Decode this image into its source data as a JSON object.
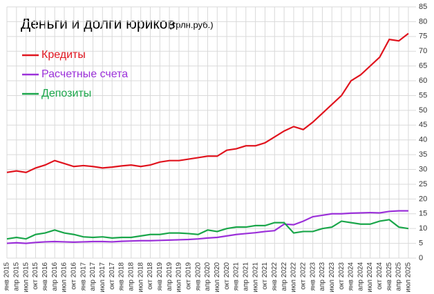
{
  "chart_data": {
    "type": "line",
    "title": "Деньги и долги юриков",
    "subtitle": "(трлн.руб.)",
    "categories": [
      "янв 2015",
      "апр 2015",
      "июл 2015",
      "окт 2015",
      "янв 2016",
      "апр 2016",
      "июл 2016",
      "окт 2016",
      "янв 2017",
      "апр 2017",
      "июл 2017",
      "окт 2017",
      "янв 2018",
      "апр 2018",
      "июл 2018",
      "окт 2018",
      "янв 2019",
      "апр 2019",
      "июл 2019",
      "окт 2019",
      "янв 2020",
      "апр 2020",
      "июл 2020",
      "окт 2020",
      "янв 2021",
      "апр 2021",
      "июл 2021",
      "окт 2021",
      "янв 2022",
      "апр 2022",
      "июл 2022",
      "окт 2022",
      "янв 2023",
      "апр 2023",
      "июл 2023",
      "окт 2023",
      "янв 2024",
      "апр 2024",
      "июл 2024",
      "окт 2024",
      "янв 2025",
      "апр 2025",
      "июл 2025"
    ],
    "series": [
      {
        "name": "Кредиты",
        "color": "#e0141e",
        "values": [
          29,
          29.5,
          29,
          30.5,
          31.5,
          33,
          32,
          31,
          31.3,
          31,
          30.5,
          30.8,
          31.2,
          31.5,
          31,
          31.5,
          32.5,
          33,
          33,
          33.5,
          34,
          34.5,
          34.5,
          36.5,
          37,
          38,
          38,
          39,
          41,
          43,
          44.5,
          43.5,
          46,
          49,
          52,
          55,
          60,
          62,
          65,
          68,
          74,
          73.5,
          76
        ]
      },
      {
        "name": "Расчетные счета",
        "color": "#9b30d9",
        "values": [
          5,
          5.2,
          5,
          5.3,
          5.5,
          5.6,
          5.5,
          5.4,
          5.5,
          5.6,
          5.6,
          5.5,
          5.7,
          5.8,
          5.9,
          5.9,
          6,
          6.1,
          6.2,
          6.3,
          6.5,
          6.8,
          7,
          7.5,
          8,
          8.3,
          8.6,
          9,
          9.3,
          11.5,
          11.3,
          12.5,
          14,
          14.5,
          15,
          15,
          15.2,
          15.3,
          15.4,
          15.3,
          15.8,
          16,
          16
        ]
      },
      {
        "name": "Депозиты",
        "color": "#1aa64a",
        "values": [
          6.5,
          7,
          6.5,
          8,
          8.5,
          9.5,
          8.5,
          8,
          7.2,
          7,
          7.2,
          6.8,
          7,
          7,
          7.5,
          8,
          8,
          8.5,
          8.5,
          8.3,
          8,
          9.5,
          9,
          10,
          10.5,
          10.5,
          11,
          11,
          12,
          12,
          8.5,
          9,
          9,
          10,
          10.5,
          12.5,
          12,
          11.5,
          11.5,
          12.5,
          13,
          10.5,
          10
        ]
      }
    ],
    "ylim": [
      0,
      85
    ],
    "yticks": [
      0,
      5,
      10,
      15,
      20,
      25,
      30,
      35,
      40,
      45,
      50,
      55,
      60,
      65,
      70,
      75,
      80,
      85
    ],
    "grid": true
  }
}
